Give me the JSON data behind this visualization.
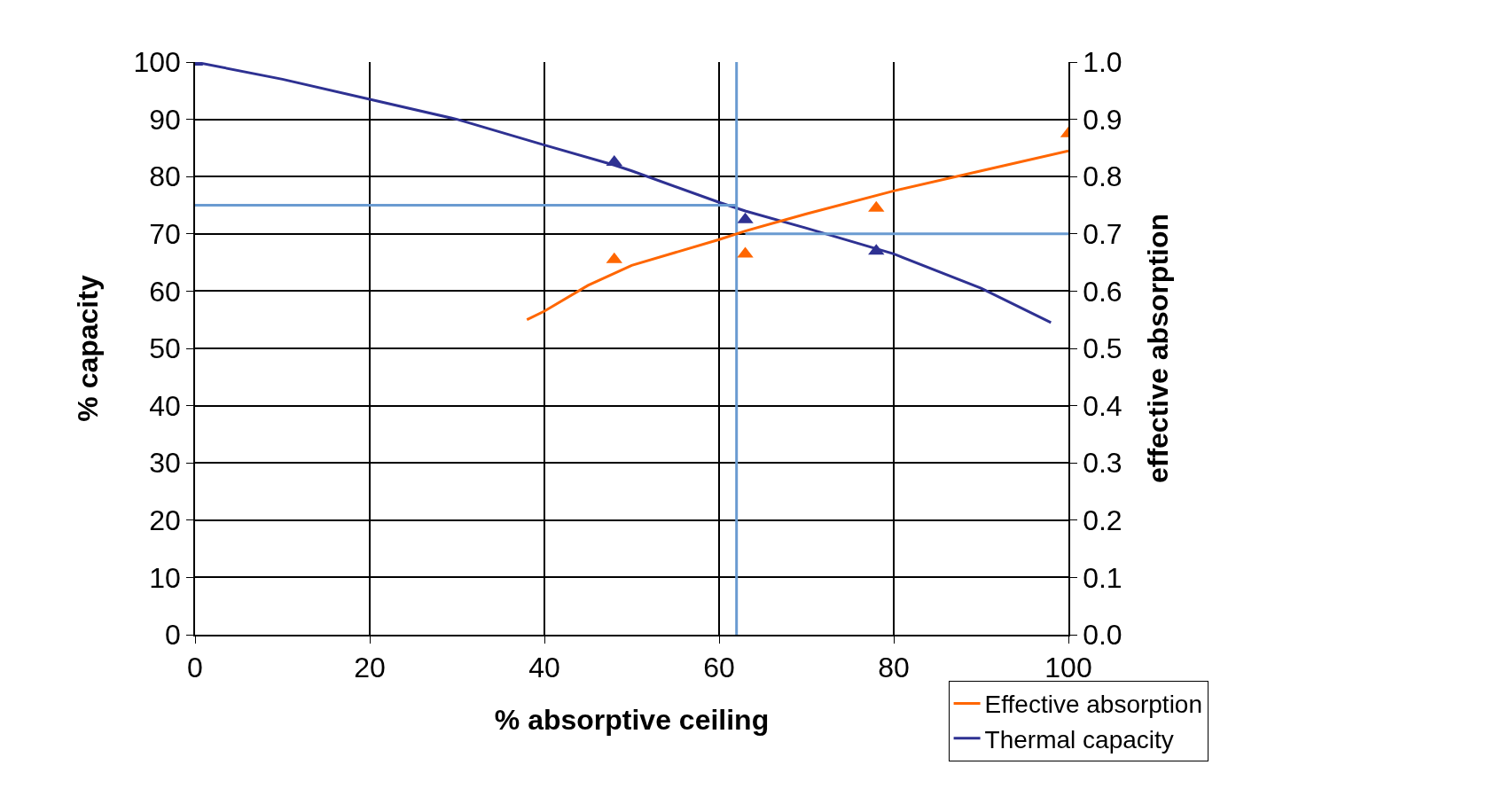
{
  "chart_data": {
    "type": "line",
    "xlabel": "% absorptive ceiling",
    "ylabel": "% capacity",
    "y2label": "effective absorption",
    "xlim": [
      0,
      100
    ],
    "xticks": [
      0,
      20,
      40,
      60,
      80,
      100
    ],
    "ylim": [
      0,
      100
    ],
    "yticks": [
      0,
      10,
      20,
      30,
      40,
      50,
      60,
      70,
      80,
      90,
      100
    ],
    "y2lim": [
      0,
      1.0
    ],
    "y2ticks": [
      {
        "value": 0,
        "label": "0.0"
      },
      {
        "value": 0.1,
        "label": "0.1"
      },
      {
        "value": 0.2,
        "label": "0.2"
      },
      {
        "value": 0.3,
        "label": "0.3"
      },
      {
        "value": 0.4,
        "label": "0.4"
      },
      {
        "value": 0.5,
        "label": "0.5"
      },
      {
        "value": 0.6,
        "label": "0.6"
      },
      {
        "value": 0.7,
        "label": "0.7"
      },
      {
        "value": 0.8,
        "label": "0.8"
      },
      {
        "value": 0.9,
        "label": "0.9"
      },
      {
        "value": 1,
        "label": "1.0"
      }
    ],
    "grid": true,
    "legend": "bottom right",
    "series": [
      {
        "name": "Effective absorption",
        "color": "#ff6600",
        "axis": "y2",
        "x": [
          38,
          40,
          45,
          50,
          60,
          63,
          70,
          80,
          90,
          100
        ],
        "values": [
          0.55,
          0.565,
          0.61,
          0.645,
          0.69,
          0.705,
          0.735,
          0.775,
          0.81,
          0.845
        ]
      },
      {
        "name": "Thermal capacity",
        "color": "#2e3192",
        "x": [
          0,
          10,
          20,
          30,
          40,
          48,
          50,
          60,
          63,
          70,
          80,
          90,
          98
        ],
        "values": [
          100,
          97,
          93.5,
          90,
          85.5,
          82,
          81,
          75.5,
          74,
          71,
          66.5,
          60.5,
          54.5
        ]
      },
      {
        "type": "scatter",
        "marker": "triangle",
        "color": "#ff6600",
        "axis": "y2",
        "x": [
          48,
          63,
          78,
          100
        ],
        "values": [
          0.655,
          0.665,
          0.745,
          0.875
        ]
      },
      {
        "type": "scatter",
        "marker": "triangle",
        "color": "#2e3192",
        "x": [
          0,
          48,
          63,
          78
        ],
        "values": [
          100,
          82.5,
          72.5,
          67
        ]
      },
      {
        "type": "line",
        "color": "#6a9bd1",
        "x": [
          0,
          62
        ],
        "values": [
          75,
          75
        ]
      },
      {
        "type": "line",
        "color": "#6a9bd1",
        "x": [
          62,
          62
        ],
        "values": [
          0,
          100
        ]
      },
      {
        "type": "line",
        "color": "#6a9bd1",
        "axis": "y2",
        "x": [
          100,
          63
        ],
        "values": [
          0.7,
          0.7
        ]
      }
    ]
  }
}
